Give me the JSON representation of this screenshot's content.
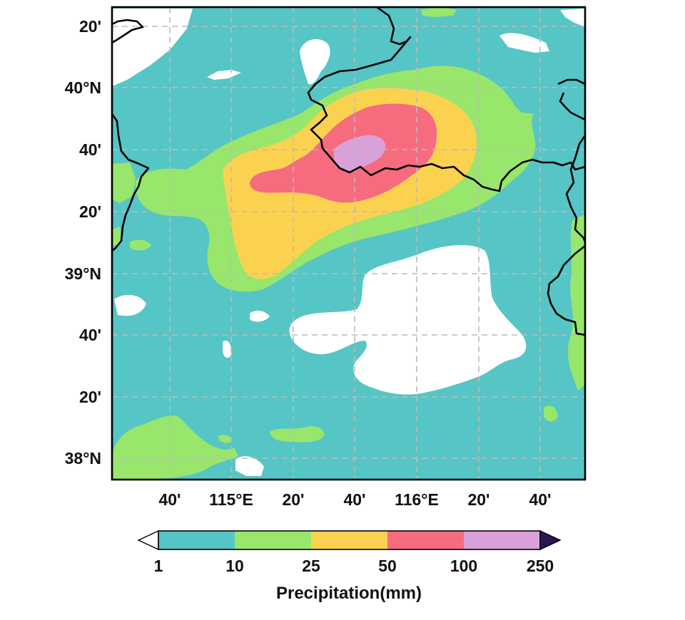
{
  "map": {
    "lat_labels": [
      "20'",
      "40°N",
      "40'",
      "20'",
      "39°N",
      "40'",
      "20'",
      "38°N"
    ],
    "lon_labels": [
      "40'",
      "115°E",
      "20'",
      "40'",
      "116°E",
      "20'",
      "40'"
    ],
    "gridlines": true,
    "background_color": "#56c5c5",
    "boundary_color": "#000000"
  },
  "legend": {
    "title": "Precipitation(mm)",
    "bounds": [
      "1",
      "10",
      "25",
      "50",
      "100",
      "250"
    ],
    "under_color": "#ffffff",
    "colors": [
      "#56c5c5",
      "#98e66c",
      "#fbd24f",
      "#f76b7f",
      "#d9a0d9"
    ],
    "over_color": "#2a1758"
  }
}
